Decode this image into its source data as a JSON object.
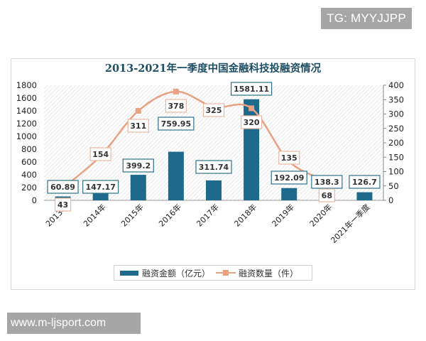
{
  "watermarks": {
    "top": "TG: MYYJJPP",
    "bottom": "www.m-ljsport.com"
  },
  "legend": {
    "bar_label": "融资金额（亿元）",
    "line_label": "融资数量（件）"
  },
  "colors": {
    "bar": "#1e6a8c",
    "line": "#e8a183",
    "bar_label_border": "#2e7088",
    "line_label_border": "#e8b9a3",
    "title": "#1f4e63"
  },
  "chart_data": {
    "type": "bar+line",
    "title": "2013-2021年一季度中国金融科技投融资情况",
    "categories": [
      "2013年",
      "2014年",
      "2015年",
      "2016年",
      "2017年",
      "2018年",
      "2019年",
      "2020年",
      "2021年一季度"
    ],
    "series": [
      {
        "name": "融资金额（亿元）",
        "type": "bar",
        "axis": "left",
        "values": [
          60.89,
          147.17,
          399.2,
          759.95,
          311.74,
          1581.11,
          192.09,
          138.3,
          126.7
        ],
        "labels": [
          "60.89",
          "147.17",
          "399.2",
          "759.95",
          "311.74",
          "1581.11",
          "192.09",
          "138.3",
          "126.7"
        ]
      },
      {
        "name": "融资数量（件）",
        "type": "line",
        "axis": "right",
        "values": [
          43,
          154,
          311,
          378,
          325,
          320,
          135,
          68,
          null
        ],
        "labels": [
          "43",
          "154",
          "311",
          "378",
          "325",
          "320",
          "135",
          "68"
        ]
      }
    ],
    "left_axis": {
      "ylim": [
        0,
        1800
      ],
      "ticks": [
        0,
        200,
        400,
        600,
        800,
        1000,
        1200,
        1400,
        1600,
        1800
      ]
    },
    "right_axis": {
      "ylim": [
        0,
        400
      ],
      "ticks": [
        0,
        50,
        100,
        150,
        200,
        250,
        300,
        350,
        400
      ]
    },
    "xlabel": "",
    "ylabel": "",
    "grid": false,
    "legend_position": "bottom"
  }
}
